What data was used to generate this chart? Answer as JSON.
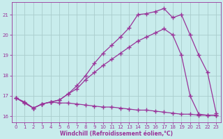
{
  "xlabel": "Windchill (Refroidissement éolien,°C)",
  "xlim": [
    -0.5,
    23.5
  ],
  "ylim": [
    15.7,
    21.6
  ],
  "yticks": [
    16,
    17,
    18,
    19,
    20,
    21
  ],
  "xticks": [
    0,
    1,
    2,
    3,
    4,
    5,
    6,
    7,
    8,
    9,
    10,
    11,
    12,
    13,
    14,
    15,
    16,
    17,
    18,
    19,
    20,
    21,
    22,
    23
  ],
  "bg_color": "#c8ecec",
  "grid_color": "#aacccc",
  "line_color": "#993399",
  "line1_x": [
    0,
    1,
    2,
    3,
    4,
    5,
    6,
    7,
    8,
    9,
    10,
    11,
    12,
    13,
    14,
    15,
    16,
    17,
    18,
    19,
    20,
    21,
    22,
    23
  ],
  "line1_y": [
    16.9,
    16.65,
    16.4,
    16.6,
    16.7,
    16.65,
    16.65,
    16.6,
    16.55,
    16.5,
    16.45,
    16.45,
    16.4,
    16.35,
    16.3,
    16.3,
    16.25,
    16.2,
    16.15,
    16.1,
    16.1,
    16.05,
    16.05,
    16.05
  ],
  "line2_x": [
    0,
    1,
    2,
    3,
    4,
    5,
    6,
    7,
    8,
    9,
    10,
    11,
    12,
    13,
    14,
    15,
    16,
    17,
    18,
    19,
    20,
    21,
    22,
    23
  ],
  "line2_y": [
    16.9,
    16.7,
    16.4,
    16.6,
    16.7,
    16.8,
    17.1,
    17.35,
    17.8,
    18.15,
    18.5,
    18.8,
    19.1,
    19.4,
    19.7,
    19.9,
    20.1,
    20.3,
    20.0,
    19.0,
    17.0,
    16.1,
    16.05,
    16.05
  ],
  "line3_x": [
    0,
    1,
    2,
    3,
    4,
    5,
    6,
    7,
    8,
    9,
    10,
    11,
    12,
    13,
    14,
    15,
    16,
    17,
    18,
    19,
    20,
    21,
    22,
    23
  ],
  "line3_y": [
    16.9,
    16.65,
    16.4,
    16.6,
    16.7,
    16.8,
    17.1,
    17.5,
    18.0,
    18.6,
    19.1,
    19.5,
    19.9,
    20.35,
    21.0,
    21.05,
    21.15,
    21.3,
    20.85,
    21.0,
    20.0,
    19.0,
    18.15,
    16.15
  ],
  "marker": "+",
  "markersize": 4,
  "linewidth": 0.9
}
